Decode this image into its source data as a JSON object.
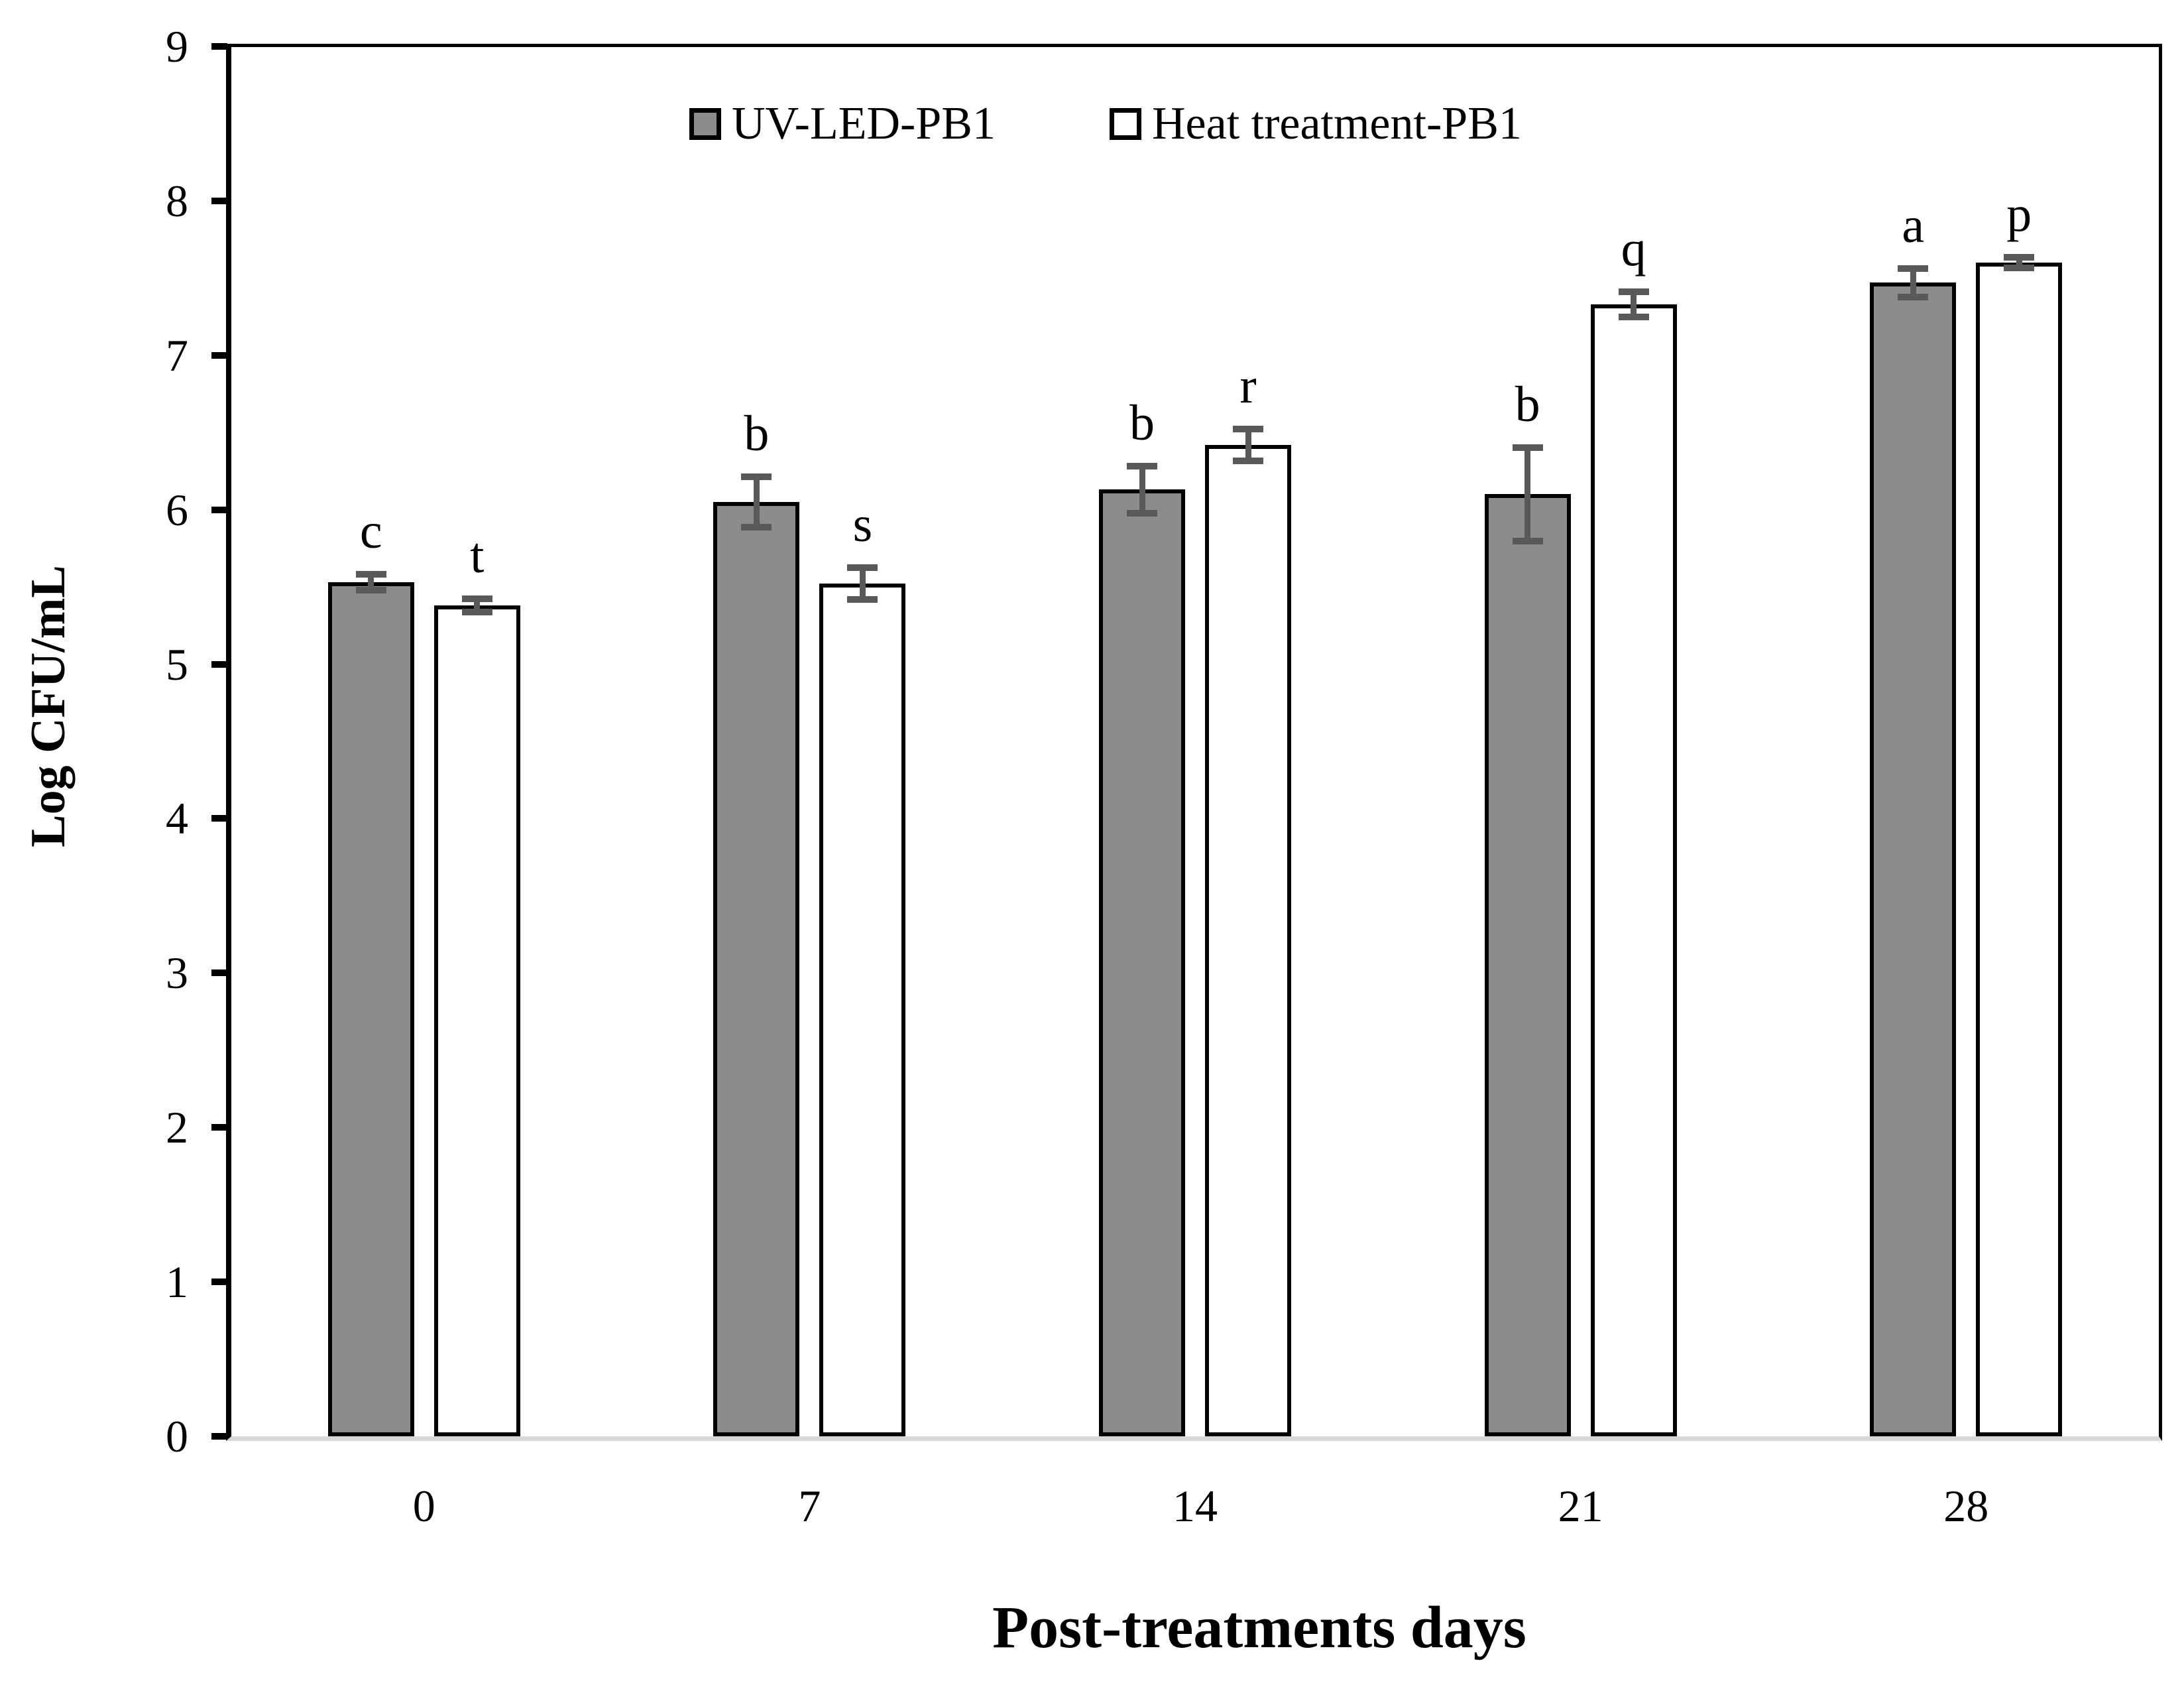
{
  "chart_data": {
    "type": "bar",
    "title": "",
    "xlabel": "Post-treatments days",
    "ylabel": "Log CFU/mL",
    "categories": [
      "0",
      "7",
      "14",
      "21",
      "28"
    ],
    "series": [
      {
        "name": "UV-LED-PB1",
        "fill": "#8c8c8c",
        "values": [
          5.53,
          6.05,
          6.13,
          6.1,
          7.47
        ],
        "errors": [
          0.04,
          0.15,
          0.14,
          0.29,
          0.08
        ],
        "letters": [
          "c",
          "b",
          "b",
          "b",
          "a"
        ]
      },
      {
        "name": "Heat treatment-PB1",
        "fill": "#ffffff",
        "values": [
          5.38,
          5.52,
          6.42,
          7.33,
          7.6
        ],
        "errors": [
          0.03,
          0.09,
          0.09,
          0.07,
          0.02
        ],
        "letters": [
          "t",
          "s",
          "r",
          "q",
          "p"
        ]
      }
    ],
    "y_ticks": [
      0,
      1,
      2,
      3,
      4,
      5,
      6,
      7,
      8,
      9
    ],
    "ylim": [
      0,
      9
    ],
    "grid": false,
    "legend_position": "top-center",
    "colors": {
      "bar_border": "#000000",
      "error_bar": "#595959",
      "y_axis_line": "#000000",
      "x_axis_line": "#d9d9d9",
      "plot_border": "#000000",
      "background": "#ffffff"
    }
  }
}
